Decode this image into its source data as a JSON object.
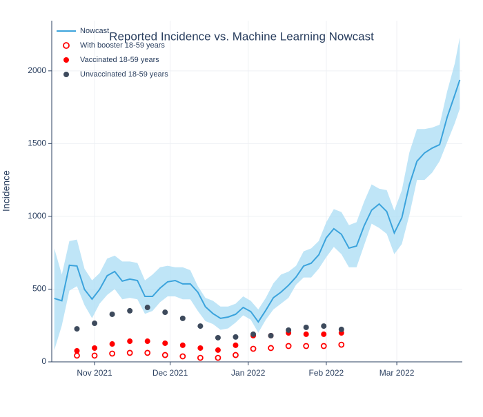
{
  "chart_data": {
    "type": "line",
    "title": "Reported Incidence vs. Machine Learning Nowcast",
    "ylabel": "Incidence",
    "xlim": [
      "2021-10-15",
      "2022-03-27"
    ],
    "xticks": [
      {
        "value": "2021-11-01",
        "label": "Nov 2021"
      },
      {
        "value": "2021-12-01",
        "label": "Dec 2021"
      },
      {
        "value": "2022-01-01",
        "label": "Jan 2022"
      },
      {
        "value": "2022-02-01",
        "label": "Feb 2022"
      },
      {
        "value": "2022-03-01",
        "label": "Mar 2022"
      }
    ],
    "ylim": [
      0,
      2345
    ],
    "yticks": [
      0,
      500,
      1000,
      1500,
      2000
    ],
    "grid": true,
    "legend": "top-left",
    "series": [
      {
        "name": "Nowcast",
        "type": "line",
        "color": "#3ba3dc",
        "band_color": "#a9dcf4",
        "x": [
          "2021-10-16",
          "2021-10-19",
          "2021-10-22",
          "2021-10-25",
          "2021-10-28",
          "2021-10-31",
          "2021-11-03",
          "2021-11-06",
          "2021-11-09",
          "2021-11-12",
          "2021-11-15",
          "2021-11-18",
          "2021-11-21",
          "2021-11-24",
          "2021-11-27",
          "2021-11-30",
          "2021-12-03",
          "2021-12-06",
          "2021-12-09",
          "2021-12-12",
          "2021-12-15",
          "2021-12-18",
          "2021-12-21",
          "2021-12-24",
          "2021-12-27",
          "2021-12-30",
          "2022-01-02",
          "2022-01-05",
          "2022-01-08",
          "2022-01-11",
          "2022-01-14",
          "2022-01-17",
          "2022-01-20",
          "2022-01-23",
          "2022-01-26",
          "2022-01-29",
          "2022-02-01",
          "2022-02-04",
          "2022-02-07",
          "2022-02-10",
          "2022-02-13",
          "2022-02-16",
          "2022-02-19",
          "2022-02-22",
          "2022-02-25",
          "2022-02-28",
          "2022-03-03",
          "2022-03-06",
          "2022-03-09",
          "2022-03-12",
          "2022-03-15",
          "2022-03-18",
          "2022-03-21",
          "2022-03-24",
          "2022-03-26"
        ],
        "values": [
          436,
          420,
          664,
          659,
          498,
          431,
          498,
          592,
          621,
          555,
          569,
          559,
          450,
          450,
          507,
          550,
          559,
          536,
          536,
          479,
          379,
          332,
          299,
          308,
          327,
          374,
          346,
          275,
          355,
          441,
          479,
          526,
          583,
          659,
          678,
          735,
          853,
          915,
          877,
          782,
          796,
          934,
          1043,
          1085,
          1033,
          886,
          991,
          1218,
          1379,
          1436,
          1469,
          1493,
          1682,
          1834,
          1938
        ],
        "lower": [
          80,
          250,
          490,
          520,
          390,
          300,
          400,
          460,
          500,
          430,
          440,
          430,
          330,
          350,
          410,
          450,
          450,
          430,
          430,
          350,
          280,
          260,
          220,
          230,
          270,
          320,
          290,
          200,
          290,
          360,
          400,
          440,
          530,
          580,
          580,
          640,
          720,
          790,
          740,
          650,
          650,
          800,
          950,
          920,
          880,
          740,
          810,
          1010,
          1250,
          1250,
          1300,
          1380,
          1510,
          1640,
          1740
        ],
        "upper": [
          780,
          600,
          830,
          840,
          640,
          560,
          610,
          710,
          730,
          690,
          690,
          680,
          560,
          600,
          650,
          660,
          650,
          650,
          630,
          520,
          440,
          420,
          380,
          380,
          400,
          450,
          420,
          360,
          440,
          540,
          600,
          620,
          660,
          760,
          780,
          830,
          960,
          1050,
          1030,
          940,
          960,
          1100,
          1220,
          1190,
          1180,
          1040,
          1180,
          1440,
          1600,
          1600,
          1610,
          1630,
          1860,
          2050,
          2230
        ]
      },
      {
        "name": "With booster 18-59 years",
        "type": "scatter",
        "symbol": "circle-open",
        "color": "#ff0000",
        "x": [
          "2021-10-25",
          "2021-11-01",
          "2021-11-08",
          "2021-11-15",
          "2021-11-22",
          "2021-11-29",
          "2021-12-06",
          "2021-12-13",
          "2021-12-20",
          "2021-12-27",
          "2022-01-03",
          "2022-01-10",
          "2022-01-17",
          "2022-01-24",
          "2022-01-31",
          "2022-02-07"
        ],
        "values": [
          43,
          43,
          57,
          62,
          62,
          47,
          38,
          28,
          28,
          47,
          90,
          95,
          109,
          109,
          109,
          118
        ]
      },
      {
        "name": "Vaccinated  18-59 years",
        "type": "scatter",
        "symbol": "circle",
        "color": "#ff0000",
        "x": [
          "2021-10-25",
          "2021-11-01",
          "2021-11-08",
          "2021-11-15",
          "2021-11-22",
          "2021-11-29",
          "2021-12-06",
          "2021-12-13",
          "2021-12-20",
          "2021-12-27",
          "2022-01-03",
          "2022-01-10",
          "2022-01-17",
          "2022-01-24",
          "2022-01-31",
          "2022-02-07"
        ],
        "values": [
          76,
          95,
          123,
          142,
          142,
          128,
          114,
          95,
          81,
          114,
          180,
          180,
          199,
          190,
          190,
          199
        ]
      },
      {
        "name": "Unvaccinated 18-59 years",
        "type": "scatter",
        "symbol": "circle",
        "color": "#3d4a5c",
        "x": [
          "2021-10-25",
          "2021-11-01",
          "2021-11-08",
          "2021-11-15",
          "2021-11-22",
          "2021-11-29",
          "2021-12-06",
          "2021-12-13",
          "2021-12-20",
          "2021-12-27",
          "2022-01-03",
          "2022-01-10",
          "2022-01-17",
          "2022-01-24",
          "2022-01-31",
          "2022-02-07"
        ],
        "values": [
          227,
          265,
          327,
          351,
          374,
          341,
          299,
          246,
          166,
          171,
          190,
          180,
          218,
          237,
          246,
          223
        ]
      }
    ]
  }
}
